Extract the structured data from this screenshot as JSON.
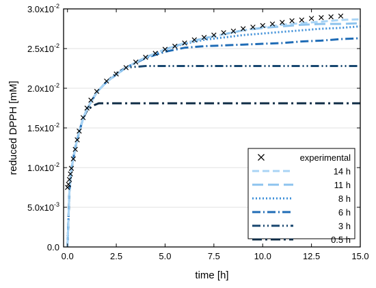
{
  "chart_data": {
    "type": "line",
    "xlabel": "time [h]",
    "ylabel": "reduced DPPH [mM]",
    "xlim": [
      -0.2,
      15.0
    ],
    "ylim": [
      0.0,
      0.03
    ],
    "x_ticks": [
      0.0,
      2.5,
      5.0,
      7.5,
      10.0,
      12.5,
      15.0
    ],
    "x_tick_labels": [
      "0.0",
      "2.5",
      "5.0",
      "7.5",
      "10.0",
      "12.5",
      "15.0"
    ],
    "y_ticks": [
      0.0,
      0.005,
      0.01,
      0.015,
      0.02,
      0.025,
      0.03
    ],
    "y_tick_labels": [
      {
        "m": "0.0",
        "e": ""
      },
      {
        "m": "5.0x10",
        "e": "-3"
      },
      {
        "m": "1.0x10",
        "e": "-2"
      },
      {
        "m": "1.5x10",
        "e": "-2"
      },
      {
        "m": "2.0x10",
        "e": "-2"
      },
      {
        "m": "2.5x10",
        "e": "-2"
      },
      {
        "m": "3.0x10",
        "e": "-2"
      }
    ],
    "grid": "horizontal",
    "legend_position": "bottom-right",
    "experimental": {
      "name": "experimental",
      "marker": "x",
      "color": "#000000",
      "x": [
        0.0,
        0.05,
        0.1,
        0.15,
        0.2,
        0.3,
        0.4,
        0.5,
        0.6,
        0.8,
        1.0,
        1.2,
        1.5,
        2.0,
        2.5,
        3.0,
        3.5,
        4.0,
        4.5,
        5.0,
        5.5,
        6.0,
        6.5,
        7.0,
        7.5,
        8.0,
        8.5,
        9.0,
        9.5,
        10.0,
        10.5,
        11.0,
        11.5,
        12.0,
        12.5,
        13.0,
        13.5,
        14.0
      ],
      "y": [
        0.0075,
        0.0079,
        0.0085,
        0.0092,
        0.0099,
        0.0111,
        0.0123,
        0.0135,
        0.0146,
        0.0163,
        0.0175,
        0.0185,
        0.0196,
        0.0209,
        0.0218,
        0.0226,
        0.0233,
        0.0239,
        0.0244,
        0.0249,
        0.0253,
        0.0257,
        0.0261,
        0.0264,
        0.0267,
        0.027,
        0.0272,
        0.0275,
        0.0277,
        0.0279,
        0.0281,
        0.0283,
        0.0285,
        0.0286,
        0.0288,
        0.0289,
        0.029,
        0.0291
      ]
    },
    "series": [
      {
        "name": "14 h",
        "color": "#a9d4f5",
        "dash": "10 5",
        "width": 3,
        "x": [
          0.0,
          0.1,
          0.2,
          0.4,
          0.6,
          0.8,
          1.0,
          1.5,
          2.0,
          3.0,
          4.0,
          5.0,
          6.0,
          7.0,
          8.0,
          9.0,
          10.0,
          11.0,
          12.0,
          13.0,
          14.0,
          15.0
        ],
        "y": [
          0.0,
          0.0071,
          0.0098,
          0.0125,
          0.0145,
          0.0162,
          0.0174,
          0.0195,
          0.0208,
          0.0226,
          0.0239,
          0.0249,
          0.0257,
          0.0263,
          0.0268,
          0.0273,
          0.0277,
          0.028,
          0.0282,
          0.0284,
          0.0286,
          0.0287
        ]
      },
      {
        "name": "11 h",
        "color": "#8cc3ee",
        "dash": "16 7",
        "width": 3,
        "x": [
          0.0,
          0.1,
          0.2,
          0.4,
          0.6,
          0.8,
          1.0,
          1.5,
          2.0,
          3.0,
          4.0,
          5.0,
          6.0,
          7.0,
          8.0,
          9.0,
          10.0,
          11.0,
          12.0,
          13.0,
          14.0,
          15.0
        ],
        "y": [
          0.0,
          0.0071,
          0.0098,
          0.0125,
          0.0145,
          0.0162,
          0.0174,
          0.0195,
          0.0208,
          0.0226,
          0.0239,
          0.0249,
          0.0257,
          0.0263,
          0.0268,
          0.0273,
          0.0276,
          0.0278,
          0.028,
          0.0281,
          0.0281,
          0.0282
        ]
      },
      {
        "name": "8 h",
        "color": "#3e8fd8",
        "dash": "2 3",
        "width": 3,
        "x": [
          0.0,
          0.1,
          0.2,
          0.4,
          0.6,
          0.8,
          1.0,
          1.5,
          2.0,
          3.0,
          4.0,
          5.0,
          6.0,
          7.0,
          8.0,
          9.0,
          10.0,
          11.0,
          12.0,
          13.0,
          14.0,
          15.0
        ],
        "y": [
          0.0,
          0.0071,
          0.0098,
          0.0125,
          0.0145,
          0.0162,
          0.0174,
          0.0195,
          0.0208,
          0.0226,
          0.0239,
          0.0249,
          0.0256,
          0.0261,
          0.0264,
          0.0267,
          0.0269,
          0.0271,
          0.0273,
          0.0275,
          0.0276,
          0.0278
        ]
      },
      {
        "name": "6 h",
        "color": "#1f6cb6",
        "dash": "12 4 2 4",
        "width": 3,
        "x": [
          0.0,
          0.1,
          0.2,
          0.4,
          0.6,
          0.8,
          1.0,
          1.5,
          2.0,
          3.0,
          4.0,
          5.0,
          6.0,
          7.0,
          8.0,
          9.0,
          10.0,
          11.0,
          12.0,
          13.0,
          14.0,
          15.0
        ],
        "y": [
          0.0,
          0.0071,
          0.0098,
          0.0125,
          0.0145,
          0.0162,
          0.0174,
          0.0195,
          0.0208,
          0.0226,
          0.0238,
          0.0246,
          0.0251,
          0.0253,
          0.0254,
          0.0255,
          0.0256,
          0.0257,
          0.0259,
          0.026,
          0.0262,
          0.0263
        ]
      },
      {
        "name": "3 h",
        "color": "#17466f",
        "dash": "12 4 2 4 2 4",
        "width": 3,
        "x": [
          0.0,
          0.1,
          0.2,
          0.4,
          0.6,
          0.8,
          1.0,
          1.5,
          2.0,
          2.5,
          3.0,
          4.0,
          5.0,
          6.0,
          8.0,
          10.0,
          12.0,
          14.0,
          15.0
        ],
        "y": [
          0.0,
          0.0071,
          0.0098,
          0.0125,
          0.0145,
          0.0162,
          0.0174,
          0.0195,
          0.0208,
          0.0219,
          0.0226,
          0.0228,
          0.0228,
          0.0228,
          0.0228,
          0.0228,
          0.0228,
          0.0228,
          0.0228
        ]
      },
      {
        "name": "0.5 h",
        "color": "#0f2c46",
        "dash": "14 5 3 5",
        "width": 3,
        "x": [
          0.0,
          0.1,
          0.2,
          0.4,
          0.6,
          0.8,
          1.0,
          1.3,
          1.6,
          2.0,
          3.0,
          5.0,
          7.0,
          9.0,
          11.0,
          13.0,
          15.0
        ],
        "y": [
          0.0,
          0.0071,
          0.0098,
          0.0125,
          0.0145,
          0.0162,
          0.0172,
          0.0178,
          0.0181,
          0.0181,
          0.0181,
          0.0181,
          0.0181,
          0.0181,
          0.0181,
          0.0181,
          0.0181
        ]
      }
    ]
  }
}
